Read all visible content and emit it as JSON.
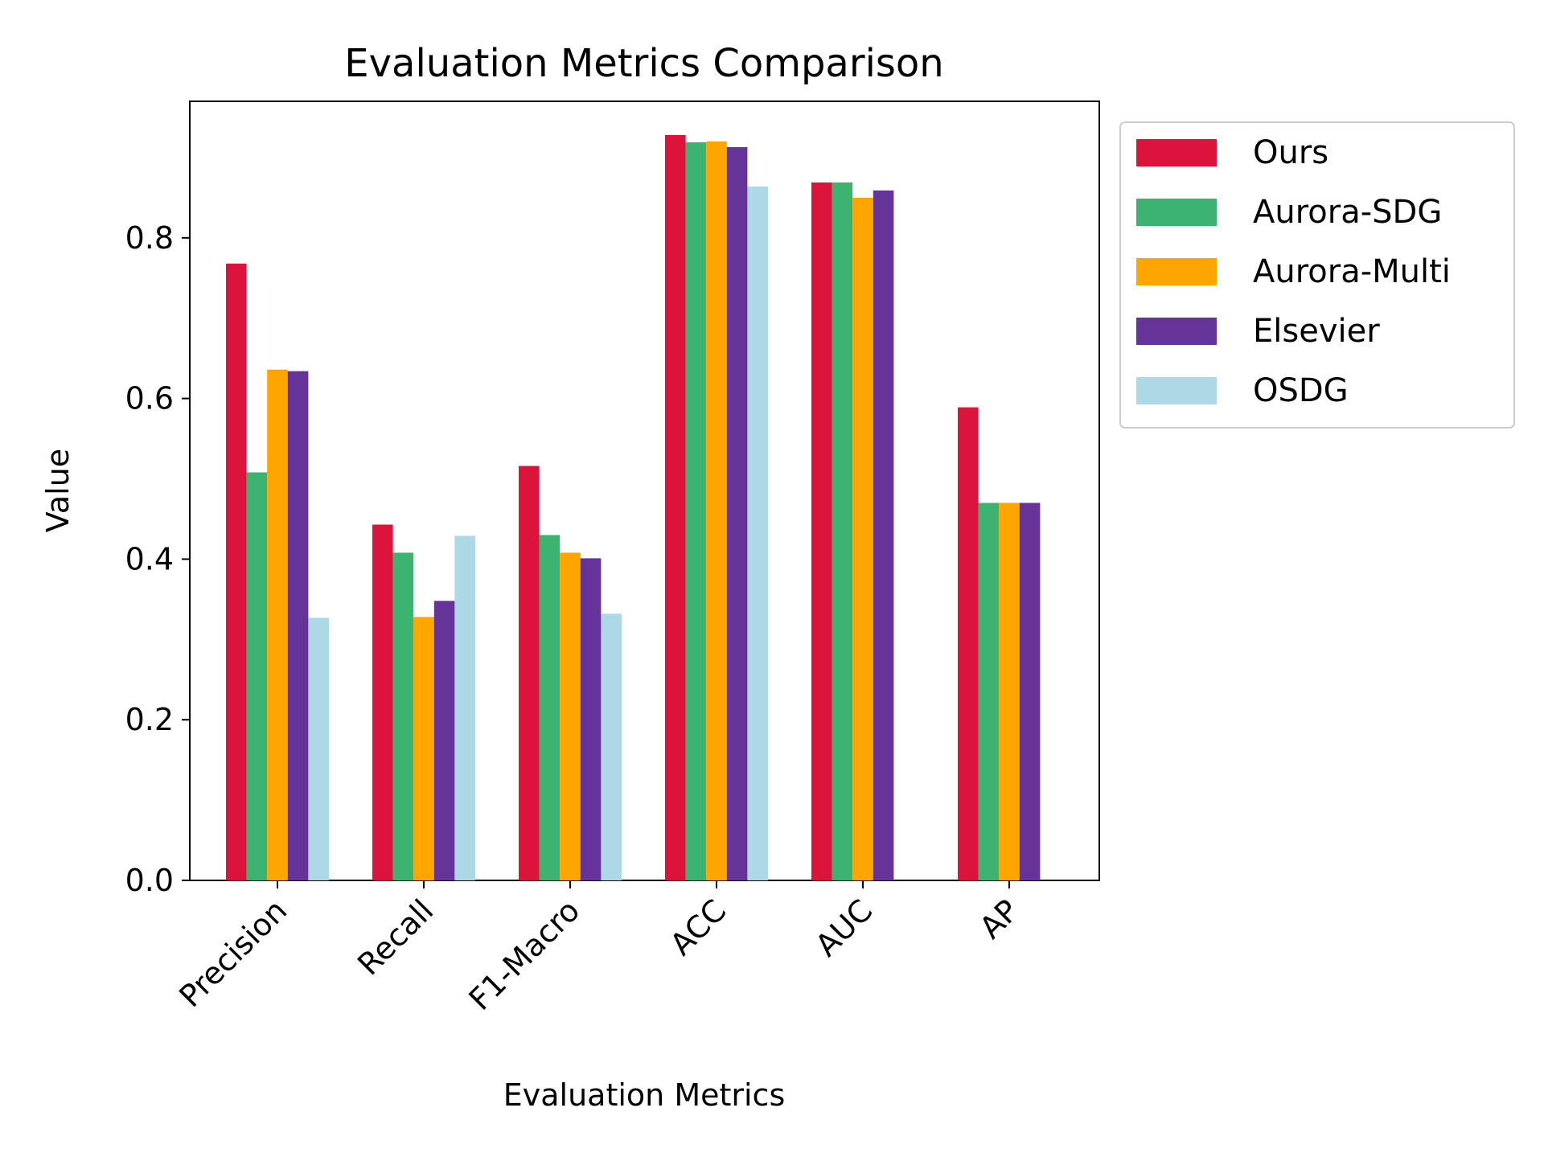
{
  "chart_data": {
    "type": "bar",
    "title": "Evaluation Metrics Comparison",
    "xlabel": "Evaluation Metrics",
    "ylabel": "Value",
    "categories": [
      "Precision",
      "Recall",
      "F1-Macro",
      "ACC",
      "AUC",
      "AP"
    ],
    "ylim": [
      0,
      0.97
    ],
    "yticks": [
      0.0,
      0.2,
      0.4,
      0.6,
      0.8
    ],
    "ytick_labels": [
      "0.0",
      "0.2",
      "0.4",
      "0.6",
      "0.8"
    ],
    "grid": false,
    "legend_position": "outside-right-top",
    "series": [
      {
        "name": "Ours",
        "color": "#DC143C",
        "values": [
          0.768,
          0.443,
          0.516,
          0.928,
          0.869,
          0.589
        ]
      },
      {
        "name": "Aurora-SDG",
        "color": "#3CB371",
        "values": [
          0.508,
          0.408,
          0.43,
          0.919,
          0.869,
          0.47
        ]
      },
      {
        "name": "Aurora-Multi",
        "color": "#FFA500",
        "values": [
          0.636,
          0.328,
          0.408,
          0.92,
          0.85,
          0.47
        ]
      },
      {
        "name": "Elsevier",
        "color": "#663399",
        "values": [
          0.634,
          0.348,
          0.401,
          0.913,
          0.859,
          0.47
        ]
      },
      {
        "name": "OSDG",
        "color": "#ADD8E6",
        "values": [
          0.327,
          0.429,
          0.332,
          0.864,
          null,
          null
        ]
      }
    ]
  }
}
